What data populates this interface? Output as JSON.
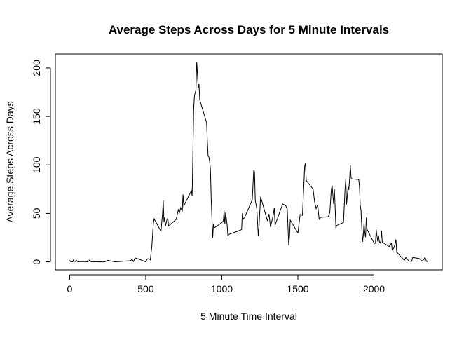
{
  "chart_data": {
    "type": "line",
    "title": "Average Steps Across Days for 5 Minute Intervals",
    "x_label": "5 Minute Time Interval",
    "y_label": "Average Steps Across Days",
    "color": "#000000",
    "xlim": [
      -94.2,
      2449.2
    ],
    "ylim": [
      -8.25,
      214.4
    ],
    "xticks": [
      0,
      500,
      1000,
      1500,
      2000
    ],
    "yticks": [
      0,
      50,
      100,
      150,
      200
    ],
    "x": [
      0,
      5,
      10,
      15,
      20,
      25,
      30,
      35,
      40,
      45,
      50,
      55,
      100,
      110,
      120,
      130,
      140,
      150,
      200,
      220,
      230,
      250,
      300,
      320,
      340,
      400,
      410,
      420,
      430,
      440,
      450,
      500,
      510,
      520,
      530,
      540,
      550,
      555,
      600,
      610,
      615,
      620,
      625,
      630,
      640,
      645,
      650,
      700,
      715,
      720,
      730,
      740,
      745,
      750,
      800,
      805,
      815,
      820,
      830,
      835,
      845,
      850,
      855,
      900,
      905,
      910,
      915,
      920,
      925,
      930,
      935,
      940,
      945,
      950,
      1000,
      1010,
      1015,
      1020,
      1025,
      1035,
      1040,
      1045,
      1100,
      1130,
      1135,
      1140,
      1150,
      1200,
      1210,
      1215,
      1220,
      1230,
      1240,
      1245,
      1255,
      1300,
      1310,
      1320,
      1330,
      1340,
      1345,
      1350,
      1400,
      1420,
      1430,
      1440,
      1445,
      1450,
      1500,
      1505,
      1515,
      1530,
      1545,
      1550,
      1555,
      1600,
      1610,
      1620,
      1630,
      1640,
      1650,
      1700,
      1710,
      1720,
      1725,
      1730,
      1735,
      1740,
      1745,
      1750,
      1755,
      1800,
      1805,
      1810,
      1815,
      1820,
      1825,
      1830,
      1835,
      1840,
      1845,
      1850,
      1855,
      1900,
      1905,
      1910,
      1915,
      1920,
      1925,
      1930,
      1935,
      1940,
      1945,
      1950,
      1955,
      2000,
      2005,
      2010,
      2015,
      2020,
      2025,
      2030,
      2035,
      2040,
      2045,
      2050,
      2055,
      2100,
      2115,
      2120,
      2130,
      2140,
      2145,
      2150,
      2200,
      2210,
      2230,
      2240,
      2245,
      2250,
      2255,
      2300,
      2315,
      2330,
      2335,
      2340,
      2345,
      2350,
      2355
    ],
    "values": [
      1.72,
      0.34,
      0.13,
      0.15,
      0.08,
      2.09,
      0.53,
      0.87,
      0,
      1.47,
      0.3,
      0.13,
      0.32,
      0.15,
      0,
      1.83,
      0.17,
      0.26,
      0,
      0,
      0,
      1.55,
      0,
      0.21,
      0.49,
      1.19,
      2.57,
      0.34,
      4.11,
      3.49,
      3.11,
      0,
      3,
      3.32,
      2.1,
      16,
      39.45,
      44.49,
      31.49,
      49.26,
      63.45,
      41,
      46,
      37,
      44,
      45,
      37,
      43.81,
      54.5,
      49.9,
      56,
      52,
      69.5,
      57.8,
      73.4,
      68.2,
      157.5,
      171.2,
      177.3,
      206.2,
      179.6,
      183.4,
      167,
      143.5,
      124,
      109.1,
      108.1,
      103.7,
      95.97,
      66.2,
      45.2,
      24.8,
      38.8,
      34.98,
      40.57,
      42.4,
      52.7,
      38.9,
      50.8,
      37.9,
      26.5,
      28.3,
      31.4,
      33.3,
      50,
      44,
      46,
      63.9,
      94.8,
      92.8,
      63.4,
      55,
      26.5,
      37.7,
      67.3,
      42.3,
      49.5,
      36,
      42.8,
      50,
      56,
      38,
      59.8,
      58,
      55,
      17.1,
      26.1,
      43,
      30,
      36.1,
      49,
      48,
      98.7,
      102.1,
      83.9,
      75,
      62,
      55,
      59,
      44,
      46,
      46.6,
      51,
      74.7,
      78.9,
      68.9,
      59.7,
      75.1,
      56.5,
      34.8,
      37.5,
      40.7,
      58,
      74.7,
      85.3,
      59.3,
      67.8,
      77.7,
      74.2,
      85.3,
      99.5,
      86.6,
      85.6,
      84.9,
      77.8,
      58,
      53.4,
      36.3,
      20.7,
      27.4,
      40,
      30.2,
      25.5,
      45.7,
      33.5,
      19.6,
      19,
      19.3,
      33.3,
      26.8,
      21.2,
      27.3,
      21.3,
      19.5,
      21.3,
      32.3,
      20.2,
      15.9,
      19.2,
      12.5,
      14,
      19,
      23,
      10,
      1.6,
      4.6,
      0.8,
      0.7,
      0.1,
      1.6,
      4.6,
      3.3,
      0.9,
      2.6,
      4.7,
      3.3,
      0.6,
      0.2,
      1.1
    ]
  }
}
